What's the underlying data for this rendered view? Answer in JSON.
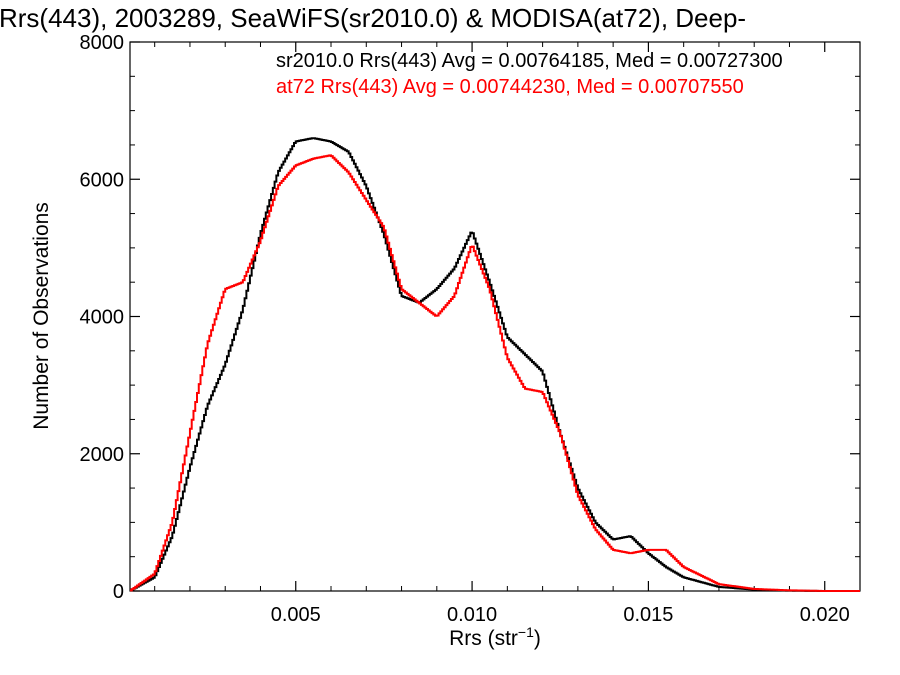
{
  "chart_data": {
    "type": "line",
    "step": true,
    "title": "Rrs(443), 2003289, SeaWiFS(sr2010.0) & MODISA(at72), Deep-",
    "xlabel": "Rrs (str",
    "xlabel_sup": "−1",
    "xlabel_suffix": ")",
    "ylabel": "Number of Observations",
    "xlim": [
      0.0003,
      0.021
    ],
    "ylim": [
      0,
      8000
    ],
    "x_ticks": [
      0.005,
      0.01,
      0.015,
      0.02
    ],
    "x_tick_labels": [
      "0.005",
      "0.010",
      "0.015",
      "0.020"
    ],
    "y_ticks": [
      0,
      2000,
      4000,
      6000,
      8000
    ],
    "y_tick_labels": [
      "0",
      "2000",
      "4000",
      "6000",
      "8000"
    ],
    "grid": false,
    "annotations": [
      {
        "text": "sr2010.0 Rrs(443) Avg = 0.00764185, Med = 0.00727300",
        "color": "#000000"
      },
      {
        "text": "at72 Rrs(443) Avg = 0.00744230, Med = 0.00707550",
        "color": "#ff0000"
      }
    ],
    "series": [
      {
        "name": "sr2010.0",
        "color": "#000000",
        "x": [
          0.0003,
          0.001,
          0.0015,
          0.002,
          0.0025,
          0.003,
          0.0035,
          0.004,
          0.0045,
          0.005,
          0.0055,
          0.006,
          0.0065,
          0.007,
          0.0075,
          0.008,
          0.0085,
          0.009,
          0.0095,
          0.01,
          0.0105,
          0.011,
          0.0115,
          0.012,
          0.0125,
          0.013,
          0.0135,
          0.014,
          0.0145,
          0.015,
          0.0155,
          0.016,
          0.017,
          0.018,
          0.019,
          0.02,
          0.021
        ],
        "y": [
          0,
          200,
          800,
          1800,
          2700,
          3300,
          4100,
          5200,
          6100,
          6550,
          6600,
          6550,
          6400,
          5900,
          5200,
          4300,
          4200,
          4400,
          4700,
          5250,
          4500,
          3700,
          3450,
          3200,
          2300,
          1500,
          1000,
          750,
          800,
          550,
          350,
          200,
          60,
          20,
          5,
          0,
          0
        ]
      },
      {
        "name": "at72",
        "color": "#ff0000",
        "x": [
          0.0003,
          0.001,
          0.0015,
          0.002,
          0.0025,
          0.003,
          0.0035,
          0.004,
          0.0045,
          0.005,
          0.0055,
          0.006,
          0.0065,
          0.007,
          0.0075,
          0.008,
          0.0085,
          0.009,
          0.0095,
          0.01,
          0.0105,
          0.011,
          0.0115,
          0.012,
          0.0125,
          0.013,
          0.0135,
          0.014,
          0.0145,
          0.015,
          0.0155,
          0.016,
          0.017,
          0.018,
          0.019,
          0.02,
          0.021
        ],
        "y": [
          0,
          250,
          1000,
          2300,
          3600,
          4400,
          4500,
          5100,
          5900,
          6200,
          6300,
          6350,
          6100,
          5700,
          5300,
          4400,
          4200,
          4000,
          4300,
          5050,
          4400,
          3400,
          2950,
          2900,
          2300,
          1400,
          900,
          600,
          550,
          600,
          600,
          350,
          100,
          30,
          10,
          0,
          0
        ]
      }
    ]
  }
}
